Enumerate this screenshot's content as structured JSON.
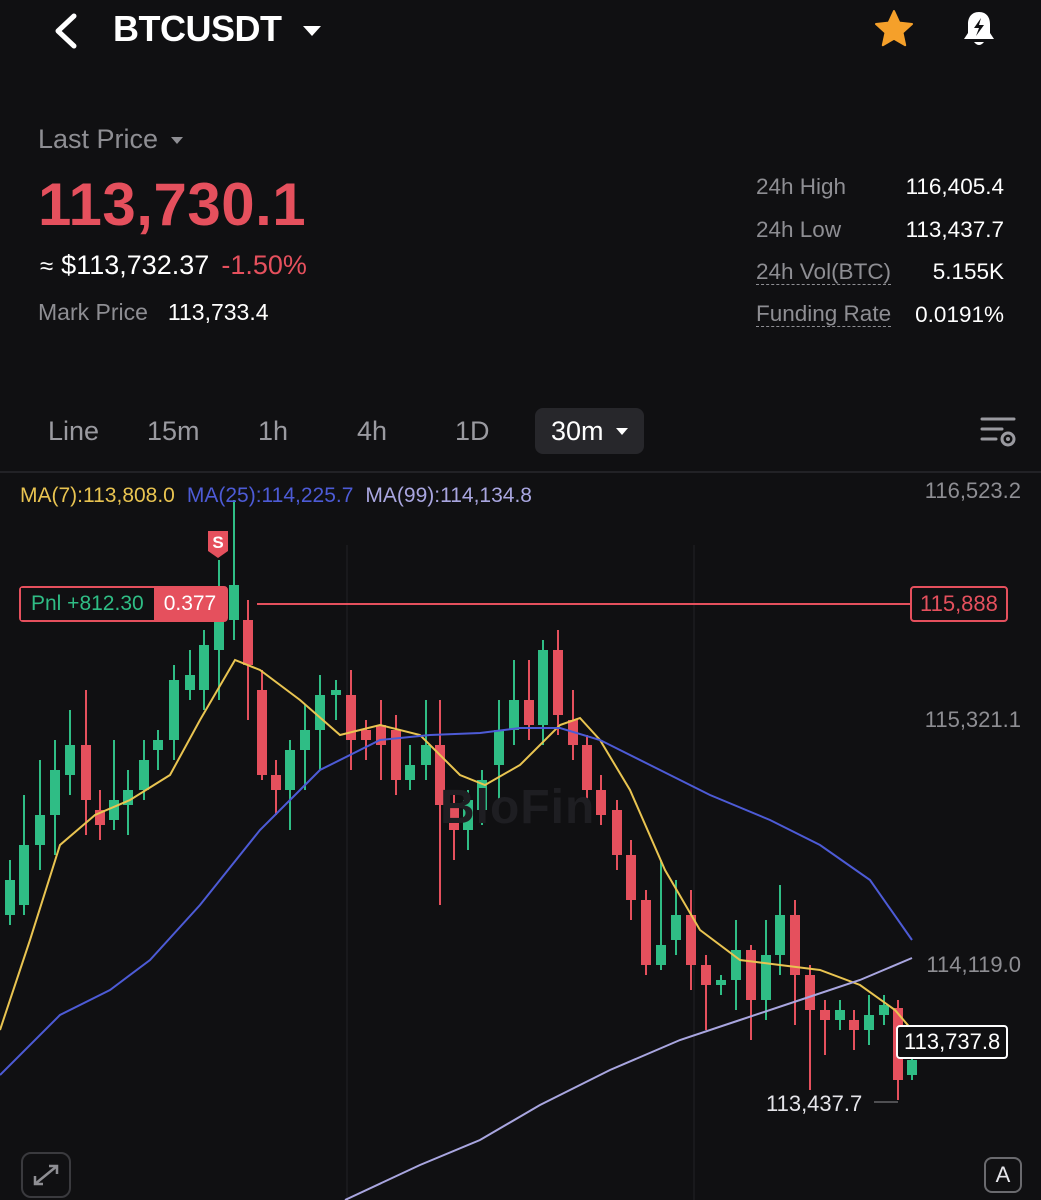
{
  "header": {
    "symbol": "BTCUSDT",
    "icons": {
      "back": "chevron-left-icon",
      "dropdown": "caret-down-icon",
      "favorite": "star-icon",
      "alert": "bell-alert-icon"
    },
    "favorite_color": "#f5a02a"
  },
  "price": {
    "last_price_label": "Last Price",
    "last_price": "113,730.1",
    "approx_symbol": "≈",
    "usd_value": "$113,732.37",
    "change_pct": "-1.50%",
    "mark_price_label": "Mark Price",
    "mark_price": "113,733.4",
    "down_color": "#e5505d"
  },
  "stats": [
    {
      "label": "24h High",
      "value": "116,405.4"
    },
    {
      "label": "24h Low",
      "value": "113,437.7"
    },
    {
      "label": "24h Vol(BTC)",
      "value": "5.155K"
    },
    {
      "label": "Funding Rate",
      "value": "0.0191%"
    }
  ],
  "tabs": [
    {
      "label": "Line"
    },
    {
      "label": "15m"
    },
    {
      "label": "1h"
    },
    {
      "label": "4h"
    },
    {
      "label": "1D"
    },
    {
      "label": "30m",
      "active": true
    }
  ],
  "chart": {
    "ma7_label": "MA(7):113,808.0",
    "ma25_label": "MA(25):114,225.7",
    "ma99_label": "MA(99):114,134.8",
    "y_axis_labels": [
      "116,523.2",
      "115,321.1",
      "114,119.0"
    ],
    "pnl_label": "Pnl +812.30",
    "position_qty": "0.377",
    "order_price": "115,888",
    "current_price": "113,737.8",
    "low_marker": "113,437.7",
    "sell_marker": "S",
    "watermark": "BloFin",
    "auto_label": "A",
    "colors": {
      "up": "#2fbd85",
      "down": "#e5505d",
      "ma7": "#e9c451",
      "ma25": "#4d5bd6",
      "ma99": "#a9a6e0"
    }
  }
}
